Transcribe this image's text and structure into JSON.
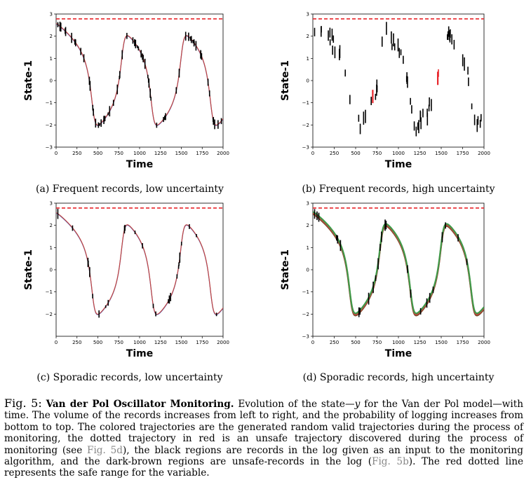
{
  "figure": {
    "label": "Fig. 5:",
    "title": "Van der Pol Oscillator Monitoring.",
    "body_1": "Evolution of the state—",
    "var": "y",
    "body_2": " for the Van der Pol model—with time. The volume of the records increases from left to right, and the probability of logging increases from bottom to top. The colored trajectories are the generated random valid trajectories during the process of monitoring, the dotted trajectory in red is an unsafe trajectory discovered during the process of monitoring (see ",
    "ref_1": "Fig. 5d",
    "body_3": "), the black regions are records in the log given as an input to the monitoring algorithm, and the dark-brown regions are unsafe-records in the log (",
    "ref_2": "Fig. 5b",
    "body_4": "). The red dotted line represents the safe range for the variable."
  },
  "colors": {
    "safe_line": "#e8262b",
    "records": "#000000",
    "traj_blue": "#4a6fd6",
    "traj_red": "#c2443f",
    "traj_green": "#3f9a49",
    "traj_brown": "#7a4a2a",
    "unsafe_record": "#e8262b"
  },
  "chart_data": [
    {
      "panel": "a",
      "type": "line",
      "subcaption": "(a) Frequent records, low uncertainty",
      "xlabel": "Time",
      "ylabel": "State-1",
      "xlim": [
        0,
        2000
      ],
      "ylim": [
        -3,
        3
      ],
      "xticks": [
        "0",
        "250",
        "500",
        "750",
        "1000",
        "1250",
        "1500",
        "1750",
        "2000"
      ],
      "yticks": [
        "−3",
        "−2",
        "−1",
        "0",
        "1",
        "2",
        "3"
      ],
      "safe_threshold": 2.78,
      "records": "frequent",
      "uncertainty": "low",
      "trajectories": [
        "blue",
        "red"
      ]
    },
    {
      "panel": "b",
      "type": "scatter",
      "subcaption": "(b) Frequent records, high uncertainty",
      "xlabel": "Time",
      "ylabel": "State-1",
      "xlim": [
        0,
        2000
      ],
      "ylim": [
        -3,
        3
      ],
      "xticks": [
        "0",
        "250",
        "500",
        "750",
        "1000",
        "1250",
        "1500",
        "1750",
        "2000"
      ],
      "yticks": [
        "−3",
        "−2",
        "−1",
        "0",
        "1",
        "2",
        "3"
      ],
      "safe_threshold": 2.78,
      "records": "frequent",
      "uncertainty": "high",
      "trajectories": [],
      "unsafe_records_at": [
        700,
        1460
      ]
    },
    {
      "panel": "c",
      "type": "line",
      "subcaption": "(c) Sporadic records, low uncertainty",
      "xlabel": "Time",
      "ylabel": "State-1",
      "xlim": [
        0,
        2000
      ],
      "ylim": [
        -3,
        3
      ],
      "xticks": [
        "0",
        "250",
        "500",
        "750",
        "1000",
        "1250",
        "1500",
        "1750",
        "2000"
      ],
      "yticks": [
        "−2",
        "−1",
        "0",
        "1",
        "2",
        "3"
      ],
      "safe_threshold": 2.78,
      "records": "sporadic",
      "uncertainty": "low",
      "trajectories": [
        "blue",
        "red"
      ]
    },
    {
      "panel": "d",
      "type": "line",
      "subcaption": "(d) Sporadic records, high uncertainty",
      "xlabel": "Time",
      "ylabel": "State-1",
      "xlim": [
        0,
        2000
      ],
      "ylim": [
        -3,
        3
      ],
      "xticks": [
        "0",
        "250",
        "500",
        "750",
        "1000",
        "1250",
        "1500",
        "1750",
        "2000"
      ],
      "yticks": [
        "−3",
        "−2",
        "−1",
        "0",
        "1",
        "2",
        "3"
      ],
      "safe_threshold": 2.78,
      "records": "sporadic",
      "uncertainty": "high",
      "trajectories": [
        "brown",
        "red",
        "green"
      ]
    }
  ]
}
